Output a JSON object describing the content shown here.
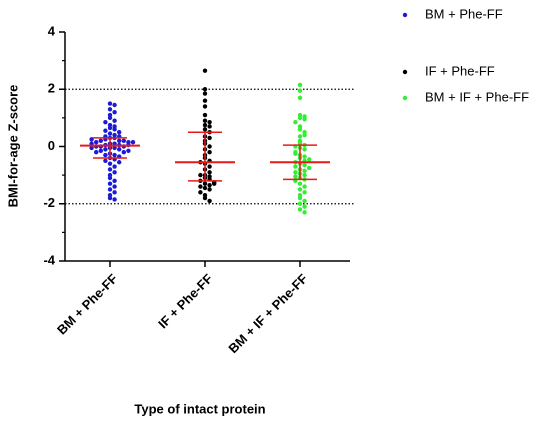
{
  "chart_data": {
    "type": "scatter",
    "x_label": "Type of intact protein",
    "y_label": "BMI-for-age Z-score",
    "categories": [
      "BM + Phe-FF",
      "IF + Phe-FF",
      "BM + IF + Phe-FF"
    ],
    "ylim": [
      -4,
      4
    ],
    "yticks": [
      -4,
      -2,
      0,
      2,
      4
    ],
    "yminorticks": [
      -3,
      -1,
      1,
      3
    ],
    "hlines": [
      2,
      -2
    ],
    "summary_color": "#e8191a",
    "series": [
      {
        "name": "BM + Phe-FF",
        "color": "#1b1bd6",
        "center": 0.03,
        "upper": 0.3,
        "lower": -0.4,
        "values": [
          1.5,
          1.45,
          1.3,
          1.2,
          1.1,
          1.0,
          0.9,
          0.85,
          0.75,
          0.7,
          0.65,
          0.6,
          0.55,
          0.5,
          0.45,
          0.4,
          0.35,
          0.3,
          0.3,
          0.25,
          0.2,
          0.2,
          0.2,
          0.15,
          0.15,
          0.1,
          0.1,
          0.05,
          0.05,
          0,
          0,
          0,
          -0.05,
          -0.05,
          -0.1,
          -0.1,
          -0.15,
          -0.2,
          -0.2,
          -0.25,
          -0.3,
          -0.3,
          -0.35,
          -0.4,
          -0.45,
          -0.5,
          -0.55,
          -0.6,
          -0.7,
          -0.8,
          -0.9,
          -1.0,
          -1.1,
          -1.2,
          -1.3,
          -1.4,
          -1.5,
          -1.6,
          -1.7,
          -1.8,
          -1.85,
          0.25,
          0.15,
          -0.15,
          0.05,
          -0.05,
          0.1,
          0.35
        ]
      },
      {
        "name": "IF + Phe-FF",
        "color": "#000000",
        "center": -0.55,
        "upper": 0.5,
        "lower": -1.2,
        "values": [
          2.65,
          2.0,
          1.85,
          1.6,
          1.4,
          1.1,
          0.9,
          0.85,
          0.75,
          0.6,
          0.5,
          0.35,
          0.2,
          0.1,
          0,
          -0.1,
          -0.2,
          -0.3,
          -0.4,
          -0.5,
          -0.6,
          -0.7,
          -0.8,
          -0.9,
          -1.0,
          -1.05,
          -1.1,
          -1.15,
          -1.2,
          -1.25,
          -1.3,
          -1.35,
          -1.4,
          -1.45,
          -1.5,
          -1.6,
          -1.7,
          -1.8,
          -1.9,
          -0.55,
          0.7,
          -1.0,
          -1.3,
          0.3
        ]
      },
      {
        "name": "BM + IF + Phe-FF",
        "color": "#33ee33",
        "center": -0.55,
        "upper": 0.05,
        "lower": -1.15,
        "values": [
          2.15,
          1.95,
          1.7,
          1.1,
          1.05,
          1.0,
          0.95,
          0.85,
          0.7,
          0.6,
          0.5,
          0.35,
          0.2,
          0.1,
          0.05,
          -0.05,
          -0.1,
          -0.2,
          -0.3,
          -0.35,
          -0.4,
          -0.5,
          -0.55,
          -0.6,
          -0.65,
          -0.7,
          -0.8,
          -0.85,
          -0.9,
          -0.95,
          -1.0,
          -1.05,
          -1.1,
          -1.15,
          -1.2,
          -1.3,
          -1.4,
          -1.5,
          -1.6,
          -1.7,
          -1.8,
          -1.9,
          -2.0,
          -2.1,
          -2.2,
          -2.3,
          -0.45,
          -0.25,
          0.0,
          0.4,
          -0.75
        ]
      }
    ]
  }
}
